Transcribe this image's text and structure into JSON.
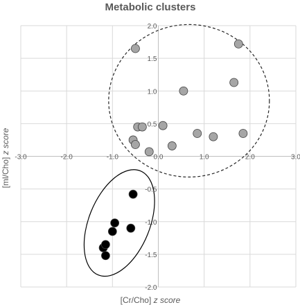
{
  "chart_data": {
    "type": "scatter",
    "title": "Metabolic clusters",
    "xlabel_main": "[Cr/Cho] ",
    "xlabel_italic": "z score",
    "ylabel_main": "[ml/Cho] ",
    "ylabel_italic": "z score",
    "xlim": [
      -3.0,
      3.0
    ],
    "ylim": [
      -2.0,
      2.0
    ],
    "x_ticks": [
      -3.0,
      -2.0,
      -1.0,
      0.0,
      1.0,
      2.0,
      3.0
    ],
    "x_tick_labels": [
      "-3.0",
      "-2.0",
      "-1.0",
      "0.0",
      "1.0",
      "2.0",
      "3.0"
    ],
    "y_ticks": [
      -2.0,
      -1.5,
      -1.0,
      -0.5,
      0.5,
      1.0,
      1.5,
      2.0
    ],
    "y_tick_labels": [
      "-2.0",
      "-1.5",
      "-1.0",
      "-0.5",
      "0.5",
      "1.0",
      "1.5",
      "2.0"
    ],
    "grid": true,
    "series": [
      {
        "color": "#a6a6a6",
        "x": [
          -0.5,
          1.75,
          0.55,
          1.65,
          -0.45,
          0.1,
          -0.55,
          -0.5,
          -0.2,
          0.85,
          1.2,
          1.85,
          0.3,
          -0.35
        ],
        "y": [
          1.65,
          1.72,
          1.0,
          1.13,
          0.45,
          0.47,
          0.25,
          0.18,
          0.07,
          0.35,
          0.3,
          0.35,
          0.16,
          0.45
        ]
      },
      {
        "color": "#000000",
        "x": [
          -0.55,
          -0.95,
          -1.0,
          -0.6,
          -1.2,
          -1.15,
          -1.15
        ],
        "y": [
          -0.58,
          -1.02,
          -1.15,
          -1.1,
          -1.4,
          -1.35,
          -1.52
        ]
      }
    ],
    "cluster_outlines": [
      {
        "shape": "dashed-circle",
        "center": [
          0.67,
          0.85
        ]
      },
      {
        "shape": "solid-ellipse",
        "center": [
          -0.85,
          -1.02
        ]
      }
    ]
  }
}
